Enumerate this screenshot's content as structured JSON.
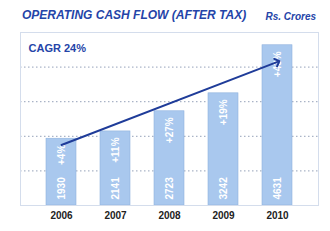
{
  "chart_data": {
    "type": "bar",
    "title": "OPERATING CASH FLOW (AFTER TAX)",
    "subtitle": "Rs. Crores",
    "categories": [
      "2006",
      "2007",
      "2008",
      "2009",
      "2010"
    ],
    "values": [
      1930,
      2141,
      2723,
      3242,
      4631
    ],
    "color": "#a9c8ee",
    "data_labels": true,
    "growth": {
      "values": [
        4,
        11,
        27,
        19,
        43
      ],
      "value_labels": [
        "+4%",
        "+11%",
        "+27%",
        "+19%",
        "+43%"
      ]
    },
    "annotations": [
      {
        "text": "CAGR 24%"
      }
    ],
    "trend": {
      "x": [
        "2006",
        "2010"
      ],
      "values": [
        1750,
        4150
      ],
      "color": "#1f3c99"
    },
    "ylim": [
      0,
      5000
    ],
    "yticks": [
      0,
      1000,
      2000,
      3000,
      4000,
      5000
    ],
    "grid": true,
    "tick_labels": "x"
  }
}
